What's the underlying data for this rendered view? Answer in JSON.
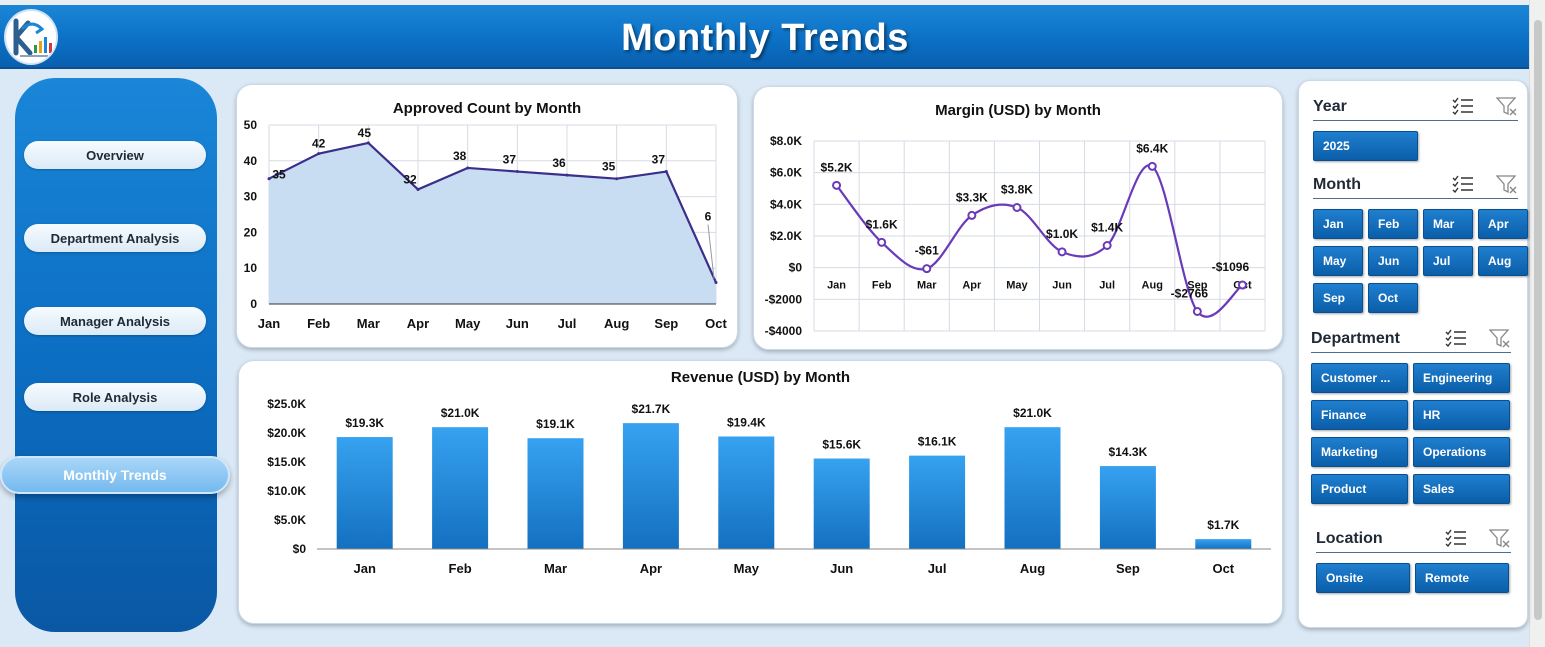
{
  "header": {
    "title": "Monthly Trends"
  },
  "sidebar": {
    "items": [
      {
        "label": "Overview",
        "active": false
      },
      {
        "label": "Department Analysis",
        "active": false
      },
      {
        "label": "Manager Analysis",
        "active": false
      },
      {
        "label": "Role Analysis",
        "active": false
      },
      {
        "label": "Monthly Trends",
        "active": true
      }
    ]
  },
  "colors": {
    "header": "#0b6fc4",
    "bar": "#1e8ae0",
    "line": "#3a2f8a",
    "area_fill": "#c9ddf2",
    "margin_line": "#6a3ab8"
  },
  "chart_data": [
    {
      "type": "area",
      "title": "Approved Count by Month",
      "categories": [
        "Jan",
        "Feb",
        "Mar",
        "Apr",
        "May",
        "Jun",
        "Jul",
        "Aug",
        "Sep",
        "Oct"
      ],
      "values": [
        35,
        42,
        45,
        32,
        38,
        37,
        36,
        35,
        37,
        6
      ],
      "data_labels": [
        "35",
        "42",
        "45",
        "32",
        "38",
        "37",
        "36",
        "35",
        "37",
        "6"
      ],
      "yticks": [
        "0",
        "10",
        "20",
        "30",
        "40",
        "50"
      ],
      "ylim": [
        0,
        50
      ],
      "grid": true
    },
    {
      "type": "line",
      "title": "Margin (USD) by Month",
      "categories": [
        "Jan",
        "Feb",
        "Mar",
        "Apr",
        "May",
        "Jun",
        "Jul",
        "Aug",
        "Sep",
        "Oct"
      ],
      "values": [
        5200,
        1600,
        -61,
        3300,
        3800,
        1000,
        1400,
        6400,
        -2766,
        -1096
      ],
      "data_labels": [
        "$5.2K",
        "$1.6K",
        "-$61",
        "$3.3K",
        "$3.8K",
        "$1.0K",
        "$1.4K",
        "$6.4K",
        "-$2766",
        "-$1096"
      ],
      "yticks": [
        "-$4000",
        "-$2000",
        "$0",
        "$2.0K",
        "$4.0K",
        "$6.0K",
        "$8.0K"
      ],
      "ylim": [
        -4000,
        8000
      ],
      "smooth": true,
      "grid": true
    },
    {
      "type": "bar",
      "title": "Revenue (USD) by Month",
      "categories": [
        "Jan",
        "Feb",
        "Mar",
        "Apr",
        "May",
        "Jun",
        "Jul",
        "Aug",
        "Sep",
        "Oct"
      ],
      "values": [
        19300,
        21000,
        19100,
        21700,
        19400,
        15600,
        16100,
        21000,
        14300,
        1700
      ],
      "data_labels": [
        "$19.3K",
        "$21.0K",
        "$19.1K",
        "$21.7K",
        "$19.4K",
        "$15.6K",
        "$16.1K",
        "$21.0K",
        "$14.3K",
        "$1.7K"
      ],
      "yticks": [
        "$0",
        "$5.0K",
        "$10.0K",
        "$15.0K",
        "$20.0K",
        "$25.0K"
      ],
      "ylim": [
        0,
        25000
      ],
      "grid": false
    }
  ],
  "slicers": {
    "year": {
      "label": "Year",
      "items": [
        "2025"
      ]
    },
    "month": {
      "label": "Month",
      "items": [
        "Jan",
        "Feb",
        "Mar",
        "Apr",
        "May",
        "Jun",
        "Jul",
        "Aug",
        "Sep",
        "Oct"
      ]
    },
    "department": {
      "label": "Department",
      "items": [
        "Customer ...",
        "Engineering",
        "Finance",
        "HR",
        "Marketing",
        "Operations",
        "Product",
        "Sales"
      ]
    },
    "location": {
      "label": "Location",
      "items": [
        "Onsite",
        "Remote"
      ]
    }
  }
}
